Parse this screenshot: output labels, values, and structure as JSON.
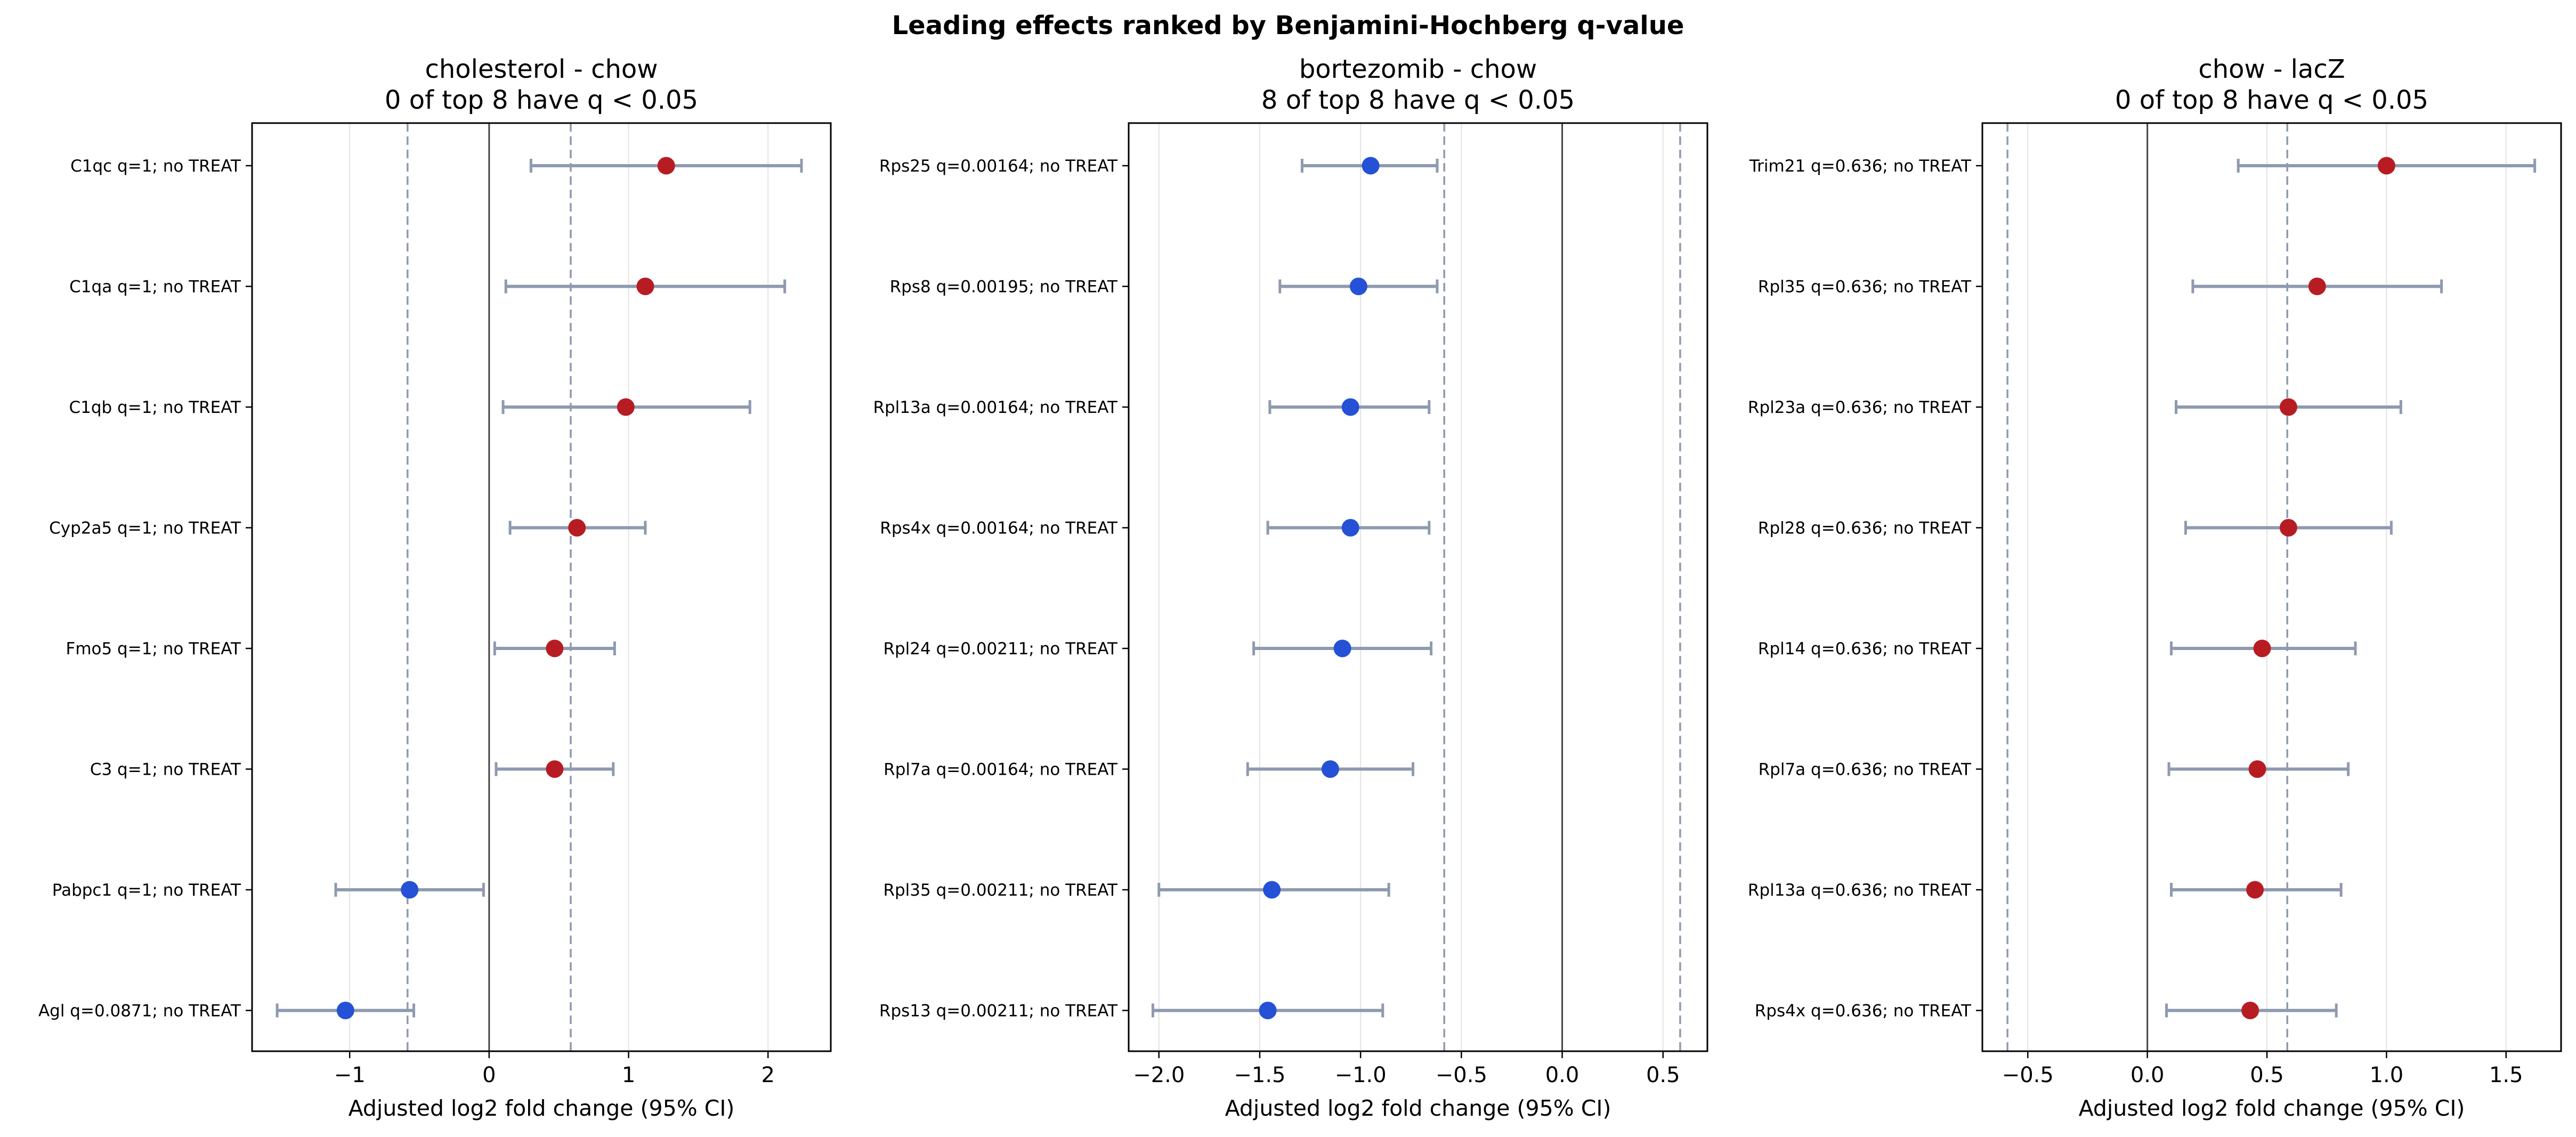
{
  "figure": {
    "suptitle": "Leading effects ranked by Benjamini-Hochberg q-value"
  },
  "colors": {
    "up": "#b81c23",
    "down": "#2451d6",
    "ci": "#8e9aaf",
    "threshold": "#8e9aaf",
    "zero_line": "#444444",
    "grid": "#e3e3e3"
  },
  "chart_data": [
    {
      "type": "scatter",
      "title": "cholesterol - chow",
      "subtitle": "0 of top 8 have q < 0.05",
      "xlabel": "Adjusted log2 fold change (95% CI)",
      "xlim": [
        -1.7,
        2.45
      ],
      "xticks": [
        -1,
        0,
        1,
        2
      ],
      "xtick_labels": [
        "−1",
        "0",
        "1",
        "2"
      ],
      "grid": "vertical",
      "thresholds": [
        -0.585,
        0.585
      ],
      "rows": [
        {
          "label": "C1qc  q=1; no TREAT",
          "estimate": 1.27,
          "ci_low": 0.3,
          "ci_high": 2.24,
          "direction": "up"
        },
        {
          "label": "C1qa  q=1; no TREAT",
          "estimate": 1.12,
          "ci_low": 0.12,
          "ci_high": 2.12,
          "direction": "up"
        },
        {
          "label": "C1qb  q=1; no TREAT",
          "estimate": 0.98,
          "ci_low": 0.1,
          "ci_high": 1.87,
          "direction": "up"
        },
        {
          "label": "Cyp2a5  q=1; no TREAT",
          "estimate": 0.63,
          "ci_low": 0.15,
          "ci_high": 1.12,
          "direction": "up"
        },
        {
          "label": "Fmo5  q=1; no TREAT",
          "estimate": 0.47,
          "ci_low": 0.04,
          "ci_high": 0.9,
          "direction": "up"
        },
        {
          "label": "C3  q=1; no TREAT",
          "estimate": 0.47,
          "ci_low": 0.05,
          "ci_high": 0.89,
          "direction": "up"
        },
        {
          "label": "Pabpc1  q=1; no TREAT",
          "estimate": -0.57,
          "ci_low": -1.1,
          "ci_high": -0.04,
          "direction": "down"
        },
        {
          "label": "Agl  q=0.0871; no TREAT",
          "estimate": -1.03,
          "ci_low": -1.52,
          "ci_high": -0.54,
          "direction": "down"
        }
      ]
    },
    {
      "type": "scatter",
      "title": "bortezomib - chow",
      "subtitle": "8 of top 8 have q < 0.05",
      "xlabel": "Adjusted log2 fold change (95% CI)",
      "xlim": [
        -2.15,
        0.72
      ],
      "xticks": [
        -2.0,
        -1.5,
        -1.0,
        -0.5,
        0.0,
        0.5
      ],
      "xtick_labels": [
        "−2.0",
        "−1.5",
        "−1.0",
        "−0.5",
        "0.0",
        "0.5"
      ],
      "grid": "vertical",
      "thresholds": [
        -0.585,
        0.585
      ],
      "rows": [
        {
          "label": "Rps25  q=0.00164; no TREAT",
          "estimate": -0.95,
          "ci_low": -1.29,
          "ci_high": -0.62,
          "direction": "down"
        },
        {
          "label": "Rps8  q=0.00195; no TREAT",
          "estimate": -1.01,
          "ci_low": -1.4,
          "ci_high": -0.62,
          "direction": "down"
        },
        {
          "label": "Rpl13a  q=0.00164; no TREAT",
          "estimate": -1.05,
          "ci_low": -1.45,
          "ci_high": -0.66,
          "direction": "down"
        },
        {
          "label": "Rps4x  q=0.00164; no TREAT",
          "estimate": -1.05,
          "ci_low": -1.46,
          "ci_high": -0.66,
          "direction": "down"
        },
        {
          "label": "Rpl24  q=0.00211; no TREAT",
          "estimate": -1.09,
          "ci_low": -1.53,
          "ci_high": -0.65,
          "direction": "down"
        },
        {
          "label": "Rpl7a  q=0.00164; no TREAT",
          "estimate": -1.15,
          "ci_low": -1.56,
          "ci_high": -0.74,
          "direction": "down"
        },
        {
          "label": "Rpl35  q=0.00211; no TREAT",
          "estimate": -1.44,
          "ci_low": -2.0,
          "ci_high": -0.86,
          "direction": "down"
        },
        {
          "label": "Rps13  q=0.00211; no TREAT",
          "estimate": -1.46,
          "ci_low": -2.03,
          "ci_high": -0.89,
          "direction": "down"
        }
      ]
    },
    {
      "type": "scatter",
      "title": "chow - lacZ",
      "subtitle": "0 of top 8 have q < 0.05",
      "xlabel": "Adjusted log2 fold change (95% CI)",
      "xlim": [
        -0.69,
        1.73
      ],
      "xticks": [
        -0.5,
        0.0,
        0.5,
        1.0,
        1.5
      ],
      "xtick_labels": [
        "−0.5",
        "0.0",
        "0.5",
        "1.0",
        "1.5"
      ],
      "grid": "vertical",
      "thresholds": [
        -0.585,
        0.585
      ],
      "rows": [
        {
          "label": "Trim21  q=0.636; no TREAT",
          "estimate": 1.0,
          "ci_low": 0.38,
          "ci_high": 1.62,
          "direction": "up"
        },
        {
          "label": "Rpl35  q=0.636; no TREAT",
          "estimate": 0.71,
          "ci_low": 0.19,
          "ci_high": 1.23,
          "direction": "up"
        },
        {
          "label": "Rpl23a  q=0.636; no TREAT",
          "estimate": 0.59,
          "ci_low": 0.12,
          "ci_high": 1.06,
          "direction": "up"
        },
        {
          "label": "Rpl28  q=0.636; no TREAT",
          "estimate": 0.59,
          "ci_low": 0.16,
          "ci_high": 1.02,
          "direction": "up"
        },
        {
          "label": "Rpl14  q=0.636; no TREAT",
          "estimate": 0.48,
          "ci_low": 0.1,
          "ci_high": 0.87,
          "direction": "up"
        },
        {
          "label": "Rpl7a  q=0.636; no TREAT",
          "estimate": 0.46,
          "ci_low": 0.09,
          "ci_high": 0.84,
          "direction": "up"
        },
        {
          "label": "Rpl13a  q=0.636; no TREAT",
          "estimate": 0.45,
          "ci_low": 0.1,
          "ci_high": 0.81,
          "direction": "up"
        },
        {
          "label": "Rps4x  q=0.636; no TREAT",
          "estimate": 0.43,
          "ci_low": 0.08,
          "ci_high": 0.79,
          "direction": "up"
        }
      ]
    }
  ]
}
